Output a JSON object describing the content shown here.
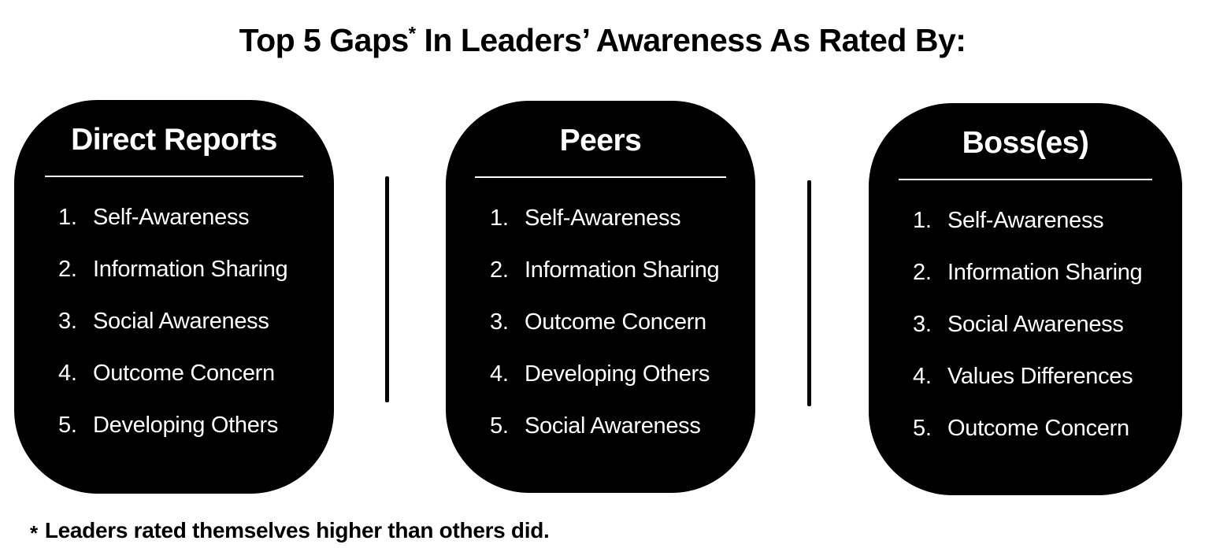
{
  "title": {
    "prefix": "Top 5 Gaps",
    "asterisk": "*",
    "suffix": " In Leaders’ Awareness As Rated By:"
  },
  "cards": [
    {
      "heading": "Direct Reports",
      "items": [
        {
          "rank": "1.",
          "label": "Self-Awareness"
        },
        {
          "rank": "2.",
          "label": "Information Sharing"
        },
        {
          "rank": "3.",
          "label": "Social Awareness"
        },
        {
          "rank": "4.",
          "label": "Outcome Concern"
        },
        {
          "rank": "5.",
          "label": "Developing Others"
        }
      ]
    },
    {
      "heading": "Peers",
      "items": [
        {
          "rank": "1.",
          "label": "Self-Awareness"
        },
        {
          "rank": "2.",
          "label": "Information Sharing"
        },
        {
          "rank": "3.",
          "label": "Outcome Concern"
        },
        {
          "rank": "4.",
          "label": "Developing Others"
        },
        {
          "rank": "5.",
          "label": "Social Awareness"
        }
      ]
    },
    {
      "heading": "Boss(es)",
      "items": [
        {
          "rank": "1.",
          "label": "Self-Awareness"
        },
        {
          "rank": "2.",
          "label": "Information Sharing"
        },
        {
          "rank": "3.",
          "label": "Social Awareness"
        },
        {
          "rank": "4.",
          "label": "Values Differences"
        },
        {
          "rank": "5.",
          "label": "Outcome Concern"
        }
      ]
    }
  ],
  "footnote": {
    "marker": "*",
    "text": "Leaders rated themselves higher than others did."
  },
  "colors": {
    "page_bg": "#ffffff",
    "card_bg": "#000000",
    "card_text": "#ffffff",
    "title_text": "#000000"
  }
}
